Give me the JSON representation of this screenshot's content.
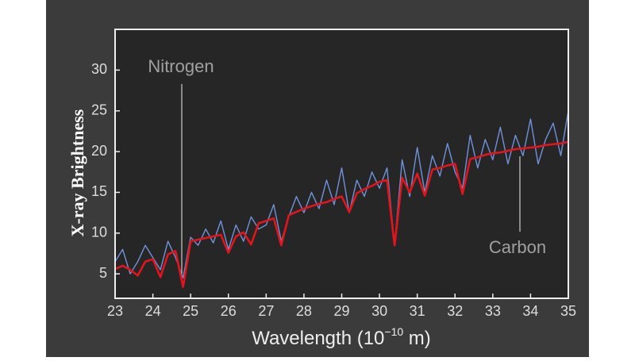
{
  "chart_data": {
    "type": "line",
    "y_label": "X-ray Brightness",
    "x_label": {
      "pre": "Wavelength (10",
      "sup": "−10",
      "post": " m)"
    },
    "annotations": [
      "Nitrogen",
      "Carbon"
    ],
    "x": [
      23.0,
      23.2,
      23.4,
      23.6,
      23.8,
      24.0,
      24.2,
      24.4,
      24.6,
      24.8,
      25.0,
      25.2,
      25.4,
      25.6,
      25.8,
      26.0,
      26.2,
      26.4,
      26.6,
      26.8,
      27.0,
      27.2,
      27.4,
      27.6,
      27.8,
      28.0,
      28.2,
      28.4,
      28.6,
      28.8,
      29.0,
      29.2,
      29.4,
      29.6,
      29.8,
      30.0,
      30.2,
      30.4,
      30.6,
      30.8,
      31.0,
      31.2,
      31.4,
      31.6,
      31.8,
      32.0,
      32.2,
      32.4,
      32.6,
      32.8,
      33.0,
      33.2,
      33.4,
      33.6,
      33.8,
      34.0,
      34.2,
      34.4,
      34.6,
      34.8,
      35.0
    ],
    "series": [
      {
        "color": "#6f93db",
        "width": 1.4,
        "values": [
          6.5,
          8.0,
          5.0,
          6.5,
          8.5,
          7.0,
          5.5,
          9.0,
          7.0,
          4.5,
          9.5,
          8.5,
          10.5,
          8.8,
          11.5,
          8.0,
          11.0,
          9.0,
          12.0,
          10.5,
          11.0,
          13.5,
          9.0,
          12.0,
          14.5,
          12.5,
          15.0,
          13.0,
          16.5,
          13.5,
          18.0,
          12.5,
          16.5,
          14.5,
          17.5,
          15.5,
          18.0,
          8.5,
          19.0,
          14.5,
          20.5,
          15.0,
          19.5,
          17.0,
          21.0,
          17.5,
          15.5,
          22.0,
          18.0,
          21.5,
          19.0,
          23.0,
          18.5,
          22.0,
          19.5,
          24.0,
          18.5,
          21.5,
          23.5,
          19.5,
          25.0
        ]
      },
      {
        "color": "#e3141c",
        "width": 2.6,
        "values": [
          5.6,
          6.0,
          5.5,
          4.8,
          6.5,
          6.8,
          4.6,
          7.4,
          7.8,
          3.4,
          9.0,
          9.2,
          9.4,
          9.6,
          9.8,
          7.6,
          9.6,
          10.1,
          8.6,
          11.2,
          11.5,
          11.8,
          8.5,
          12.2,
          12.6,
          13.0,
          13.3,
          13.6,
          13.8,
          14.2,
          14.5,
          12.6,
          14.9,
          15.4,
          15.8,
          16.3,
          16.5,
          8.5,
          16.8,
          15.0,
          17.3,
          14.6,
          17.8,
          18.0,
          18.3,
          18.5,
          14.8,
          19.1,
          19.3,
          19.6,
          19.8,
          19.9,
          20.1,
          20.3,
          20.4,
          20.5,
          20.6,
          20.8,
          20.9,
          21.0,
          21.2
        ]
      }
    ],
    "xlim": [
      23,
      35
    ],
    "xticks": [
      23,
      24,
      25,
      26,
      27,
      28,
      29,
      30,
      31,
      32,
      33,
      34,
      35
    ],
    "ylim": [
      2,
      35
    ],
    "yticks": [
      5,
      10,
      15,
      20,
      25,
      30
    ]
  }
}
